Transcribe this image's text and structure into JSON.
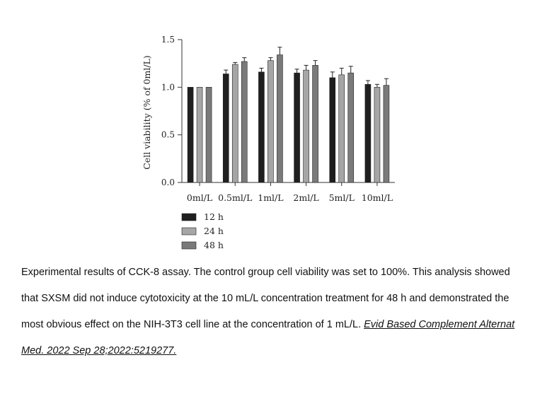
{
  "chart_data": {
    "type": "bar",
    "title": "",
    "xlabel": "",
    "ylabel": "Cell viability (% of 0ml/L)",
    "ylim": [
      0,
      1.5
    ],
    "yticks": [
      "0.0",
      "0.5",
      "1.0",
      "1.5"
    ],
    "categories": [
      "0ml/L",
      "0.5ml/L",
      "1ml/L",
      "2ml/L",
      "5ml/L",
      "10ml/L"
    ],
    "series": [
      {
        "name": "12 h",
        "color": "#1f1f1f",
        "values": [
          1.0,
          1.14,
          1.16,
          1.15,
          1.1,
          1.03
        ],
        "errors": [
          0.0,
          0.04,
          0.04,
          0.04,
          0.06,
          0.04
        ]
      },
      {
        "name": "24 h",
        "color": "#a6a6a6",
        "values": [
          1.0,
          1.24,
          1.28,
          1.18,
          1.13,
          1.0
        ],
        "errors": [
          0.0,
          0.02,
          0.03,
          0.05,
          0.07,
          0.03
        ]
      },
      {
        "name": "48 h",
        "color": "#7a7a7a",
        "values": [
          1.0,
          1.27,
          1.34,
          1.23,
          1.15,
          1.02
        ],
        "errors": [
          0.0,
          0.04,
          0.08,
          0.05,
          0.07,
          0.07
        ]
      }
    ],
    "grid": false,
    "legend_position": "bottom-left"
  },
  "caption": {
    "text": "Experimental results of CCK-8 assay. The control group cell viability was set to 100%. This analysis showed that SXSM did not induce cytotoxicity at the 10 mL/L concentration treatment for 48 h and demonstrated the most obvious effect on the NIH-3T3 cell line at the concentration of 1 mL/L. ",
    "citation": "Evid Based Complement Alternat Med. 2022 Sep 28;2022:5219277."
  }
}
